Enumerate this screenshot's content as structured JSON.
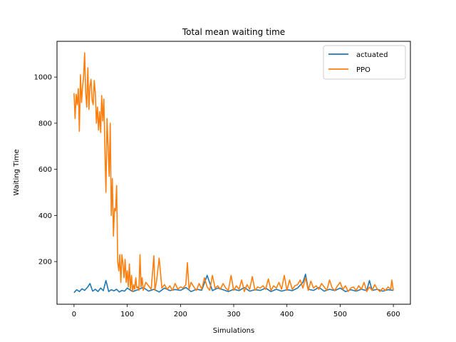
{
  "chart_data": {
    "type": "line",
    "title": "Total mean waiting time",
    "xlabel": "Simulations",
    "ylabel": "Waiting Time",
    "xlim": [
      -32,
      632
    ],
    "ylim": [
      15,
      1155
    ],
    "xticks": [
      0,
      100,
      200,
      300,
      400,
      500,
      600
    ],
    "yticks": [
      200,
      400,
      600,
      800,
      1000
    ],
    "grid": false,
    "legend_position": "top-right",
    "series": [
      {
        "name": "actuated",
        "color": "#1f77b4",
        "x": [
          0,
          5,
          10,
          15,
          20,
          25,
          30,
          35,
          40,
          45,
          50,
          55,
          60,
          65,
          70,
          75,
          80,
          85,
          90,
          95,
          100,
          110,
          120,
          130,
          140,
          150,
          160,
          170,
          180,
          190,
          200,
          210,
          220,
          230,
          240,
          250,
          260,
          270,
          280,
          290,
          300,
          310,
          320,
          330,
          340,
          350,
          360,
          370,
          380,
          390,
          400,
          410,
          420,
          430,
          435,
          440,
          450,
          460,
          470,
          480,
          490,
          500,
          510,
          520,
          530,
          540,
          550,
          555,
          560,
          570,
          580,
          590,
          600
        ],
        "y": [
          65,
          78,
          70,
          82,
          75,
          88,
          105,
          72,
          80,
          70,
          85,
          74,
          118,
          70,
          78,
          73,
          80,
          68,
          75,
          72,
          85,
          70,
          78,
          88,
          72,
          80,
          68,
          85,
          74,
          79,
          75,
          88,
          70,
          80,
          76,
          140,
          74,
          85,
          78,
          70,
          80,
          74,
          88,
          72,
          78,
          75,
          85,
          70,
          80,
          72,
          78,
          74,
          85,
          110,
          145,
          80,
          75,
          88,
          72,
          80,
          74,
          85,
          70,
          78,
          72,
          80,
          74,
          118,
          75,
          80,
          72,
          78,
          75
        ]
      },
      {
        "name": "PPO",
        "color": "#ff7f0e",
        "x": [
          0,
          2,
          4,
          6,
          8,
          10,
          12,
          14,
          16,
          18,
          20,
          22,
          24,
          26,
          28,
          30,
          32,
          34,
          36,
          38,
          40,
          42,
          44,
          46,
          48,
          50,
          52,
          54,
          56,
          58,
          60,
          62,
          64,
          66,
          68,
          70,
          72,
          74,
          76,
          78,
          80,
          82,
          84,
          86,
          88,
          90,
          92,
          94,
          96,
          98,
          100,
          102,
          104,
          106,
          108,
          110,
          112,
          114,
          116,
          118,
          120,
          122,
          124,
          126,
          128,
          130,
          135,
          140,
          145,
          150,
          152,
          155,
          160,
          165,
          170,
          175,
          180,
          185,
          190,
          195,
          200,
          205,
          210,
          213,
          216,
          220,
          225,
          230,
          235,
          240,
          245,
          250,
          255,
          260,
          265,
          270,
          275,
          280,
          285,
          290,
          295,
          300,
          305,
          310,
          315,
          320,
          325,
          330,
          335,
          340,
          345,
          350,
          355,
          360,
          365,
          370,
          375,
          380,
          385,
          390,
          395,
          400,
          405,
          410,
          415,
          420,
          425,
          430,
          435,
          440,
          445,
          450,
          455,
          460,
          465,
          470,
          475,
          480,
          485,
          490,
          495,
          500,
          505,
          510,
          515,
          520,
          525,
          530,
          535,
          540,
          545,
          550,
          555,
          560,
          565,
          570,
          575,
          580,
          585,
          590,
          595,
          597,
          600
        ],
        "y": [
          930,
          820,
          925,
          880,
          950,
          765,
          1010,
          890,
          960,
          1000,
          1105,
          930,
          870,
          1040,
          860,
          960,
          990,
          900,
          880,
          985,
          930,
          800,
          870,
          770,
          850,
          760,
          920,
          810,
          905,
          690,
          500,
          820,
          700,
          570,
          800,
          400,
          560,
          310,
          430,
          420,
          530,
          200,
          160,
          230,
          110,
          230,
          190,
          130,
          210,
          110,
          160,
          90,
          190,
          80,
          140,
          70,
          100,
          80,
          130,
          85,
          90,
          75,
          230,
          90,
          130,
          75,
          110,
          95,
          80,
          225,
          75,
          115,
          215,
          85,
          100,
          80,
          95,
          75,
          105,
          80,
          90,
          85,
          100,
          195,
          80,
          110,
          90,
          75,
          105,
          80,
          130,
          90,
          75,
          140,
          85,
          95,
          80,
          105,
          85,
          75,
          140,
          75,
          95,
          80,
          120,
          70,
          100,
          80,
          135,
          75,
          90,
          85,
          95,
          80,
          125,
          75,
          95,
          85,
          110,
          80,
          140,
          75,
          120,
          80,
          95,
          100,
          120,
          85,
          130,
          75,
          115,
          85,
          95,
          80,
          105,
          90,
          75,
          120,
          85,
          75,
          95,
          110,
          80,
          95,
          70,
          85,
          90,
          75,
          95,
          80,
          110,
          70,
          90,
          75,
          100,
          80,
          70,
          85,
          75,
          90,
          80,
          120,
          75
        ]
      }
    ]
  }
}
